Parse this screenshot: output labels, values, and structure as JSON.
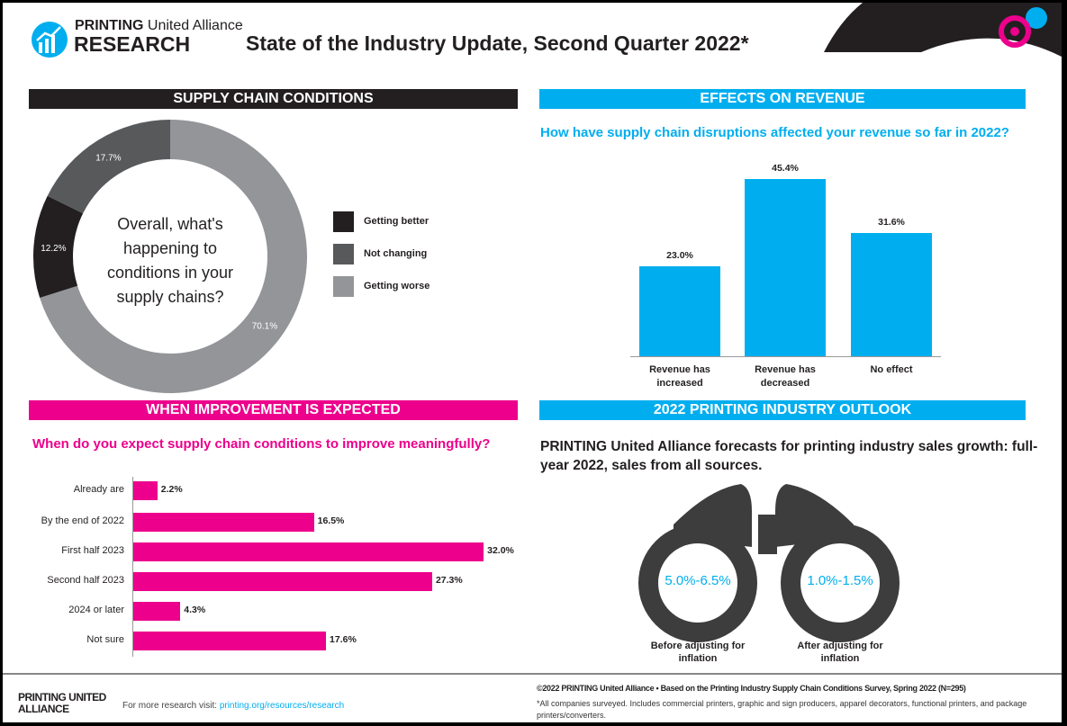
{
  "header": {
    "brand_top": "PRINTING",
    "brand_top_rest": "United Alliance",
    "brand_bottom": "RESEARCH",
    "title": "State of the Industry Update, Second Quarter 2022*"
  },
  "colors": {
    "dark": "#231f20",
    "cyan": "#00aeef",
    "magenta": "#ec008c",
    "mid_gray": "#58595b",
    "light_gray": "#939598",
    "binocular": "#3d3d3d"
  },
  "sections": {
    "supply": "SUPPLY CHAIN CONDITIONS",
    "revenue": "EFFECTS ON REVENUE",
    "improvement": "WHEN IMPROVEMENT IS EXPECTED",
    "outlook": "2022 PRINTING INDUSTRY OUTLOOK"
  },
  "chart_data": [
    {
      "type": "pie",
      "donut": true,
      "center_text": "Overall, what's happening to conditions in your supply chains?",
      "categories": [
        "Getting better",
        "Not changing",
        "Getting worse"
      ],
      "values": [
        12.2,
        17.7,
        70.1
      ],
      "labels": [
        "12.2%",
        "17.7%",
        "70.1%"
      ],
      "colors": [
        "#231f20",
        "#58595b",
        "#939598"
      ],
      "legend": "right"
    },
    {
      "type": "bar",
      "title": "How have supply chain disruptions affected your revenue so far in 2022?",
      "categories": [
        "Revenue has increased",
        "Revenue has decreased",
        "No effect"
      ],
      "values": [
        23.0,
        45.4,
        31.6
      ],
      "labels": [
        "23.0%",
        "45.4%",
        "31.6%"
      ],
      "ylim": [
        0,
        50
      ],
      "color": "#00aeef"
    },
    {
      "type": "bar",
      "orientation": "horizontal",
      "title": "When do you expect supply chain conditions to improve meaningfully?",
      "categories": [
        "Already are",
        "By the end of 2022",
        "First half 2023",
        "Second half 2023",
        "2024 or later",
        "Not sure"
      ],
      "values": [
        2.2,
        16.5,
        32.0,
        27.3,
        4.3,
        17.6
      ],
      "labels": [
        "2.2%",
        "16.5%",
        "32.0%",
        "27.3%",
        "4.3%",
        "17.6%"
      ],
      "color": "#ec008c"
    }
  ],
  "outlook": {
    "text": "PRINTING United Alliance forecasts for printing industry sales growth: full-year 2022, sales from all sources.",
    "before_value": "5.0%-6.5%",
    "before_label": "Before adjusting for inflation",
    "after_value": "1.0%-1.5%",
    "after_label": "After adjusting for inflation"
  },
  "footer": {
    "logo": "PRINTING UNITED ALLIANCE",
    "visit_text": "For more research visit: ",
    "visit_link": "printing.org/resources/research",
    "copyright": "©2022 PRINTING United Alliance • Based on the Printing Industry Supply Chain Conditions Survey, Spring 2022  (N=295)",
    "note": "*All companies surveyed. Includes commercial printers, graphic and sign producers, apparel decorators, functional printers, and package printers/converters."
  }
}
